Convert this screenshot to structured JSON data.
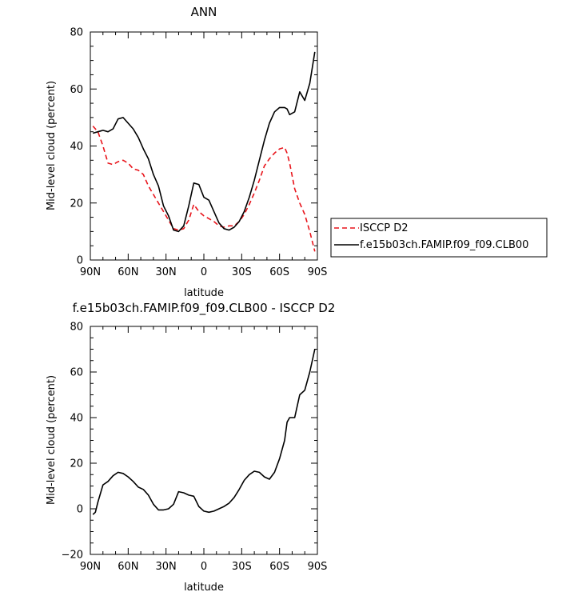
{
  "chart_data": [
    {
      "type": "line",
      "title": "ANN",
      "xlabel": "latitude",
      "ylabel": "Mid-level cloud (percent)",
      "xlim": [
        90,
        -90
      ],
      "ylim": [
        0,
        80
      ],
      "x_ticks": [
        90,
        60,
        30,
        0,
        -30,
        -60,
        -90
      ],
      "x_tick_labels": [
        "90N",
        "60N",
        "30N",
        "0",
        "30S",
        "60S",
        "90S"
      ],
      "y_ticks": [
        0,
        20,
        40,
        60,
        80
      ],
      "y_tick_labels": [
        "0",
        "20",
        "40",
        "60",
        "80"
      ],
      "legend": "right",
      "series": [
        {
          "name": "ISCCP D2",
          "color": "#e8141b",
          "dash": "dashed",
          "x": [
            88,
            84,
            80,
            76,
            72,
            68,
            64,
            60,
            56,
            52,
            48,
            44,
            40,
            36,
            32,
            28,
            24,
            20,
            16,
            12,
            8,
            4,
            0,
            -4,
            -8,
            -12,
            -16,
            -20,
            -24,
            -28,
            -32,
            -36,
            -40,
            -44,
            -48,
            -52,
            -56,
            -60,
            -64,
            -66,
            -68,
            -72,
            -76,
            -80,
            -84,
            -88
          ],
          "y": [
            47,
            45,
            40,
            34,
            33.5,
            34.5,
            35,
            34,
            32,
            31.5,
            30,
            26,
            23,
            20,
            17,
            14,
            11,
            10.5,
            11,
            14,
            19.5,
            17,
            15.5,
            14.5,
            13.5,
            12,
            11.5,
            12,
            12,
            13.5,
            16,
            19.5,
            23.5,
            28,
            33,
            35.5,
            37.5,
            39,
            39.5,
            37.5,
            34,
            25,
            20,
            16,
            10,
            3
          ]
        },
        {
          "name": "f.e15b03ch.FAMIP.f09_f09.CLB00",
          "color": "#000000",
          "dash": "solid",
          "x": [
            88,
            84,
            80,
            76,
            72,
            68,
            64,
            60,
            56,
            52,
            48,
            44,
            40,
            36,
            32,
            28,
            24,
            20,
            16,
            12,
            8,
            4,
            0,
            -4,
            -8,
            -12,
            -16,
            -20,
            -24,
            -28,
            -32,
            -36,
            -40,
            -44,
            -48,
            -52,
            -56,
            -60,
            -64,
            -66,
            -68,
            -72,
            -76,
            -80,
            -84,
            -88
          ],
          "y": [
            44.5,
            45,
            45.5,
            45,
            46,
            49.5,
            50,
            48,
            46,
            43,
            39,
            35.5,
            30,
            26,
            19,
            15.5,
            10.5,
            10,
            12,
            19,
            27,
            26.5,
            22,
            21,
            17,
            13,
            11,
            10.5,
            11.5,
            13.5,
            17,
            22,
            28,
            35,
            42,
            48,
            52,
            53.5,
            53.5,
            53,
            51,
            52,
            59,
            56,
            62,
            73
          ]
        }
      ]
    },
    {
      "type": "line",
      "title": "f.e15b03ch.FAMIP.f09_f09.CLB00 - ISCCP D2",
      "xlabel": "latitude",
      "ylabel": "Mid-level cloud (percent)",
      "xlim": [
        90,
        -90
      ],
      "ylim": [
        -20,
        80
      ],
      "x_ticks": [
        90,
        60,
        30,
        0,
        -30,
        -60,
        -90
      ],
      "x_tick_labels": [
        "90N",
        "60N",
        "30N",
        "0",
        "30S",
        "60S",
        "90S"
      ],
      "y_ticks": [
        -20,
        0,
        20,
        40,
        60,
        80
      ],
      "y_tick_labels": [
        "−20",
        "0",
        "20",
        "40",
        "60",
        "80"
      ],
      "series": [
        {
          "color": "#000000",
          "dash": "solid",
          "x": [
            88,
            86,
            84,
            80,
            76,
            72,
            68,
            64,
            60,
            56,
            52,
            48,
            44,
            40,
            36,
            32,
            28,
            24,
            20,
            16,
            12,
            8,
            4,
            0,
            -4,
            -8,
            -12,
            -16,
            -20,
            -24,
            -28,
            -32,
            -36,
            -40,
            -44,
            -48,
            -52,
            -56,
            -60,
            -64,
            -66,
            -68,
            -72,
            -76,
            -80,
            -84,
            -88
          ],
          "y": [
            -2.5,
            -1.5,
            3,
            10.5,
            12,
            14.5,
            16,
            15.5,
            14,
            12,
            9.5,
            8.5,
            6,
            2,
            -0.5,
            -0.5,
            0,
            2,
            7.5,
            7,
            6,
            5.5,
            1,
            -1,
            -1.5,
            -1,
            0,
            1,
            2.5,
            5,
            8.5,
            12.5,
            15,
            16.5,
            16,
            14,
            13,
            16,
            22,
            30,
            38,
            40,
            40,
            50,
            52,
            60,
            70
          ]
        }
      ]
    }
  ]
}
